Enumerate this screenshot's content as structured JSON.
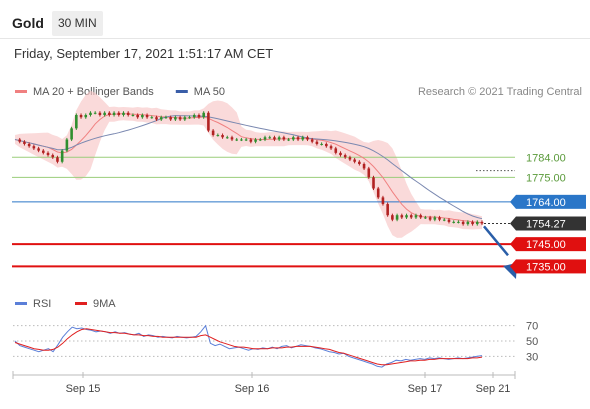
{
  "header": {
    "instrument": "Gold",
    "timeframe": "30 MIN",
    "datetime": "Friday, September 17, 2021 1:51:17 AM CET"
  },
  "legend": {
    "main": [
      {
        "label": "MA 20 + Bollinger Bands",
        "color": "#f08080"
      },
      {
        "label": "MA 50",
        "color": "#3a5ea8"
      }
    ],
    "copyright": "Research © 2021 Trading Central",
    "rsi": [
      {
        "label": "RSI",
        "color": "#5b7fd8"
      },
      {
        "label": "9MA",
        "color": "#e02020"
      }
    ]
  },
  "colors": {
    "bollinger_fill": "#f7c6c6",
    "ma20": "#f08080",
    "ma50": "#7a88b0",
    "candle_up": "#2f8f2f",
    "candle_down": "#b22222",
    "resistance_green": "#9acd7a",
    "level_blue": "#2a76c8",
    "support_red": "#e01010",
    "current_price": "#333333",
    "arrow": "#2a5ea8"
  },
  "chart_data": {
    "type": "candlestick",
    "y_range": [
      1728,
      1803
    ],
    "x_ticks": [
      "Sep 15",
      "Sep 16",
      "Sep 17",
      "Sep 21"
    ],
    "levels": [
      {
        "value": 1784.0,
        "label": "1784.00",
        "kind": "resistance"
      },
      {
        "value": 1775.0,
        "label": "1775.00",
        "kind": "resistance"
      },
      {
        "value": 1764.0,
        "label": "1764.00",
        "kind": "pivot"
      },
      {
        "value": 1754.27,
        "label": "1754.27",
        "kind": "current"
      },
      {
        "value": 1745.0,
        "label": "1745.00",
        "kind": "support"
      },
      {
        "value": 1735.0,
        "label": "1735.00",
        "kind": "support"
      }
    ],
    "price_path": [
      1792,
      1791,
      1790,
      1789,
      1788,
      1787,
      1786,
      1785,
      1784,
      1782,
      1787,
      1792,
      1797,
      1803,
      1802,
      1803,
      1804,
      1804,
      1803,
      1804,
      1803,
      1804,
      1803,
      1804,
      1803,
      1803,
      1802,
      1803,
      1802,
      1802,
      1801,
      1802,
      1802,
      1801,
      1802,
      1801,
      1802,
      1802,
      1803,
      1802,
      1804,
      1796,
      1794,
      1794,
      1793,
      1793,
      1792,
      1792,
      1792,
      1792,
      1791,
      1792,
      1792,
      1793,
      1793,
      1792,
      1793,
      1792,
      1792,
      1793,
      1792,
      1793,
      1792,
      1791,
      1790,
      1790,
      1789,
      1788,
      1786,
      1785,
      1784,
      1783,
      1782,
      1781,
      1779,
      1775,
      1770,
      1766,
      1763,
      1758,
      1756,
      1758,
      1757,
      1758,
      1757,
      1758,
      1757,
      1757,
      1756,
      1757,
      1756,
      1756,
      1755,
      1755,
      1755,
      1754,
      1755,
      1754,
      1755,
      1754.27
    ],
    "rsi": {
      "y_ticks": [
        70,
        50,
        30
      ],
      "rsi_values": [
        50,
        44,
        42,
        40,
        38,
        36,
        38,
        40,
        36,
        45,
        55,
        62,
        68,
        66,
        67,
        65,
        64,
        62,
        63,
        62,
        60,
        62,
        60,
        61,
        59,
        58,
        60,
        56,
        58,
        57,
        55,
        56,
        55,
        54,
        56,
        55,
        54,
        55,
        56,
        62,
        70,
        47,
        44,
        46,
        43,
        40,
        41,
        42,
        40,
        38,
        40,
        39,
        41,
        40,
        42,
        40,
        43,
        44,
        41,
        43,
        45,
        44,
        43,
        41,
        40,
        38,
        36,
        35,
        33,
        34,
        30,
        28,
        26,
        24,
        22,
        20,
        17,
        16,
        20,
        22,
        25,
        24,
        26,
        25,
        26,
        27,
        26,
        28,
        27,
        28,
        27,
        26,
        27,
        28,
        27,
        28,
        29,
        30,
        31
      ],
      "ma9_values": [
        48,
        46,
        44,
        42,
        40,
        39,
        38,
        38,
        39,
        42,
        47,
        53,
        58,
        62,
        65,
        66,
        65,
        64,
        63,
        62,
        61,
        61,
        60,
        60,
        59,
        58,
        58,
        57,
        57,
        56,
        56,
        55,
        55,
        55,
        55,
        55,
        55,
        55,
        55,
        57,
        58,
        55,
        52,
        49,
        47,
        45,
        43,
        42,
        42,
        41,
        40,
        40,
        40,
        40,
        41,
        41,
        41,
        42,
        42,
        43,
        43,
        43,
        43,
        42,
        41,
        40,
        39,
        37,
        35,
        34,
        32,
        30,
        28,
        26,
        24,
        22,
        20,
        19,
        19,
        20,
        21,
        22,
        23,
        24,
        24,
        25,
        25,
        26,
        26,
        27,
        27,
        27,
        27,
        27,
        27,
        27,
        28,
        28,
        29
      ]
    }
  }
}
